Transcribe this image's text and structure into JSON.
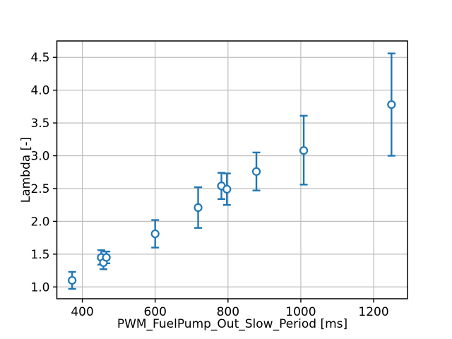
{
  "figure": {
    "background": "#ffffff",
    "accent_color": "#1f77b4",
    "marker_face_color": "#ffffff",
    "grid_color": "#bdbdbd",
    "spine_color": "#000000",
    "text_color": "#000000"
  },
  "chart_data": {
    "type": "scatter",
    "subtype": "errorbar",
    "title": "",
    "xlabel": "PWM_FuelPump_Out_Slow_Period [ms]",
    "ylabel": "Lambda [-]",
    "xlim": [
      330,
      1293
    ],
    "ylim": [
      0.82,
      4.75
    ],
    "xticks": [
      400,
      600,
      800,
      1000,
      1200
    ],
    "yticks": [
      1.0,
      1.5,
      2.0,
      2.5,
      3.0,
      3.5,
      4.0,
      4.5
    ],
    "grid": true,
    "legend_position": "none",
    "marker": "open-circle",
    "series": [
      {
        "name": "lambda-vs-pwm-period",
        "points": [
          {
            "x": 372,
            "y": 1.1,
            "y_low": 0.97,
            "y_high": 1.23
          },
          {
            "x": 452,
            "y": 1.45,
            "y_low": 1.34,
            "y_high": 1.56
          },
          {
            "x": 458,
            "y": 1.37,
            "y_low": 1.27,
            "y_high": 1.47
          },
          {
            "x": 466,
            "y": 1.45,
            "y_low": 1.36,
            "y_high": 1.54
          },
          {
            "x": 600,
            "y": 1.81,
            "y_low": 1.6,
            "y_high": 2.02
          },
          {
            "x": 718,
            "y": 2.21,
            "y_low": 1.9,
            "y_high": 2.52
          },
          {
            "x": 782,
            "y": 2.54,
            "y_low": 2.34,
            "y_high": 2.74
          },
          {
            "x": 797,
            "y": 2.49,
            "y_low": 2.25,
            "y_high": 2.73
          },
          {
            "x": 878,
            "y": 2.76,
            "y_low": 2.47,
            "y_high": 3.05
          },
          {
            "x": 1008,
            "y": 3.08,
            "y_low": 2.56,
            "y_high": 3.61
          },
          {
            "x": 1249,
            "y": 3.78,
            "y_low": 3.0,
            "y_high": 4.56
          }
        ]
      }
    ]
  }
}
